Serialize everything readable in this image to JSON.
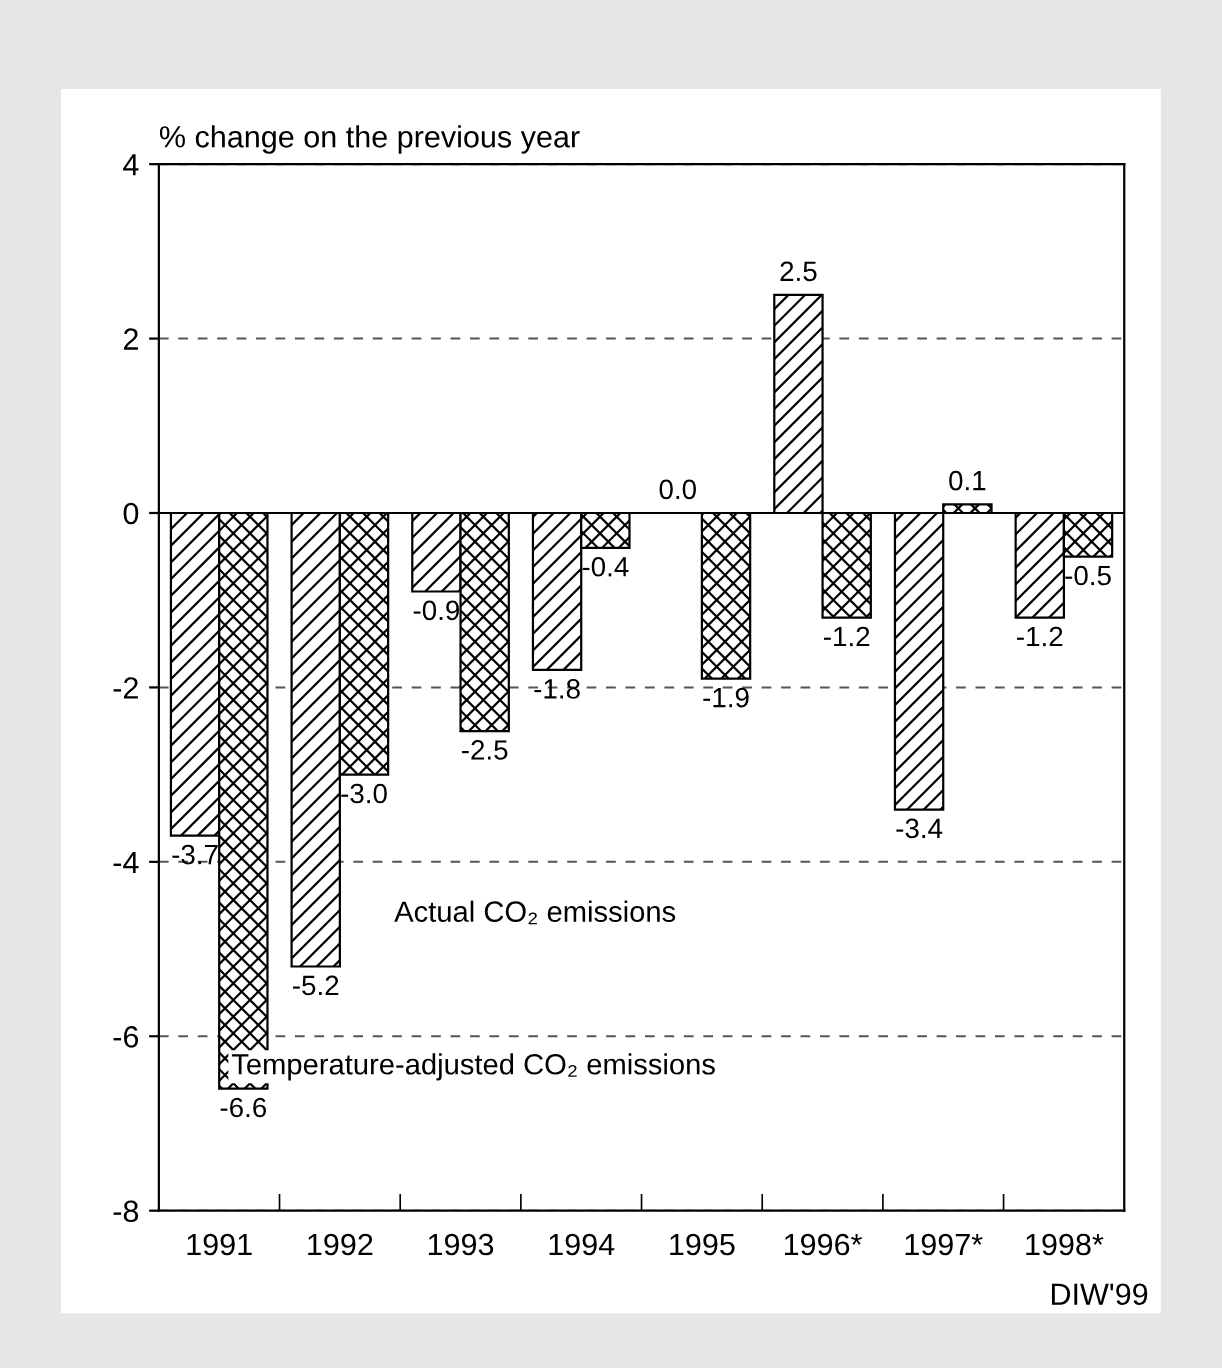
{
  "chart_data": {
    "type": "bar",
    "ylabel": "% change on the previous year",
    "categories": [
      "1991",
      "1992",
      "1993",
      "1994",
      "1995",
      "1996*",
      "1997*",
      "1998*"
    ],
    "series": [
      {
        "name": "Actual CO₂ emissions",
        "color": "#000000",
        "values": [
          -3.7,
          -5.2,
          -0.9,
          -1.8,
          0.0,
          2.5,
          -3.4,
          -1.2
        ],
        "value_labels": [
          "-3.7",
          "-5.2",
          "-0.9",
          "-1.8",
          "0.0",
          "2.5",
          "-3.4",
          "-1.2"
        ]
      },
      {
        "name": "Temperature-adjusted CO₂ emissions",
        "color": "#000000",
        "values": [
          -6.6,
          -3.0,
          -2.5,
          -0.4,
          -1.9,
          -1.2,
          0.1,
          -0.5
        ],
        "value_labels": [
          "-6.6",
          "-3.0",
          "-2.5",
          "-0.4",
          "-1.9",
          "-1.2",
          "0.1",
          "-0.5"
        ]
      }
    ],
    "ylim": [
      -8,
      4
    ],
    "yticks": [
      -8,
      -6,
      -4,
      -2,
      0,
      2,
      4
    ],
    "grid": "y",
    "line_style": "dashed",
    "data_labels": true,
    "legend": false,
    "annotations": [
      "DIW'99"
    ]
  }
}
